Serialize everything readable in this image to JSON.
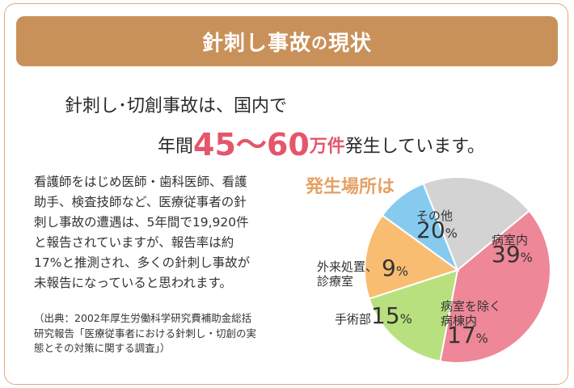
{
  "banner": {
    "title_main": "針刺し事故",
    "title_particle": "の",
    "title_end": "現状"
  },
  "headline": {
    "line1": "針刺し･切創事故は、国内で",
    "prefix": "年間",
    "range": "45～60",
    "unit": "万件",
    "suffix": "発生しています。"
  },
  "paragraph": [
    "看護師をはじめ医師・歯科医師、看護",
    "助手、検査技師など、医療従事者の針",
    "刺し事故の遭遇は、5年間で19,920件",
    "と報告されていますが、報告率は約",
    "17%と推測され、多くの針刺し事故が",
    "未報告になっていると思われます。"
  ],
  "source": [
    "（出典：2002年厚生労働科学研究費補助金総括",
    "研究報告「医療従事者における針刺し・切創の実",
    "態とその対策に関する調査」）"
  ],
  "chart_title": "発生場所は",
  "chart_data": {
    "type": "pie",
    "title": "発生場所は",
    "slices": [
      {
        "label": "病室内",
        "value": 39,
        "color": "#ee8797"
      },
      {
        "label": "病室を除く病棟内",
        "value": 17,
        "color": "#b9e07e"
      },
      {
        "label": "手術部",
        "value": 15,
        "color": "#f9bd72"
      },
      {
        "label": "外来処置、診療室",
        "value": 9,
        "color": "#86cbef"
      },
      {
        "label": "その他",
        "value": 20,
        "color": "#d3d3d3"
      }
    ]
  },
  "labels": {
    "byoushitsu": {
      "l1": "病室内",
      "num": "39",
      "pct": "%"
    },
    "byoutou": {
      "l1": "病室を除く",
      "l2": "病棟内",
      "num": "17",
      "pct": "%"
    },
    "shujutsu": {
      "l1": "手術部",
      "num": "15",
      "pct": "%"
    },
    "gairai": {
      "l1": "外来処置、",
      "l2": "診療室",
      "num": "9",
      "pct": "%"
    },
    "sonota": {
      "l1": "その他",
      "num": "20",
      "pct": "%"
    }
  }
}
